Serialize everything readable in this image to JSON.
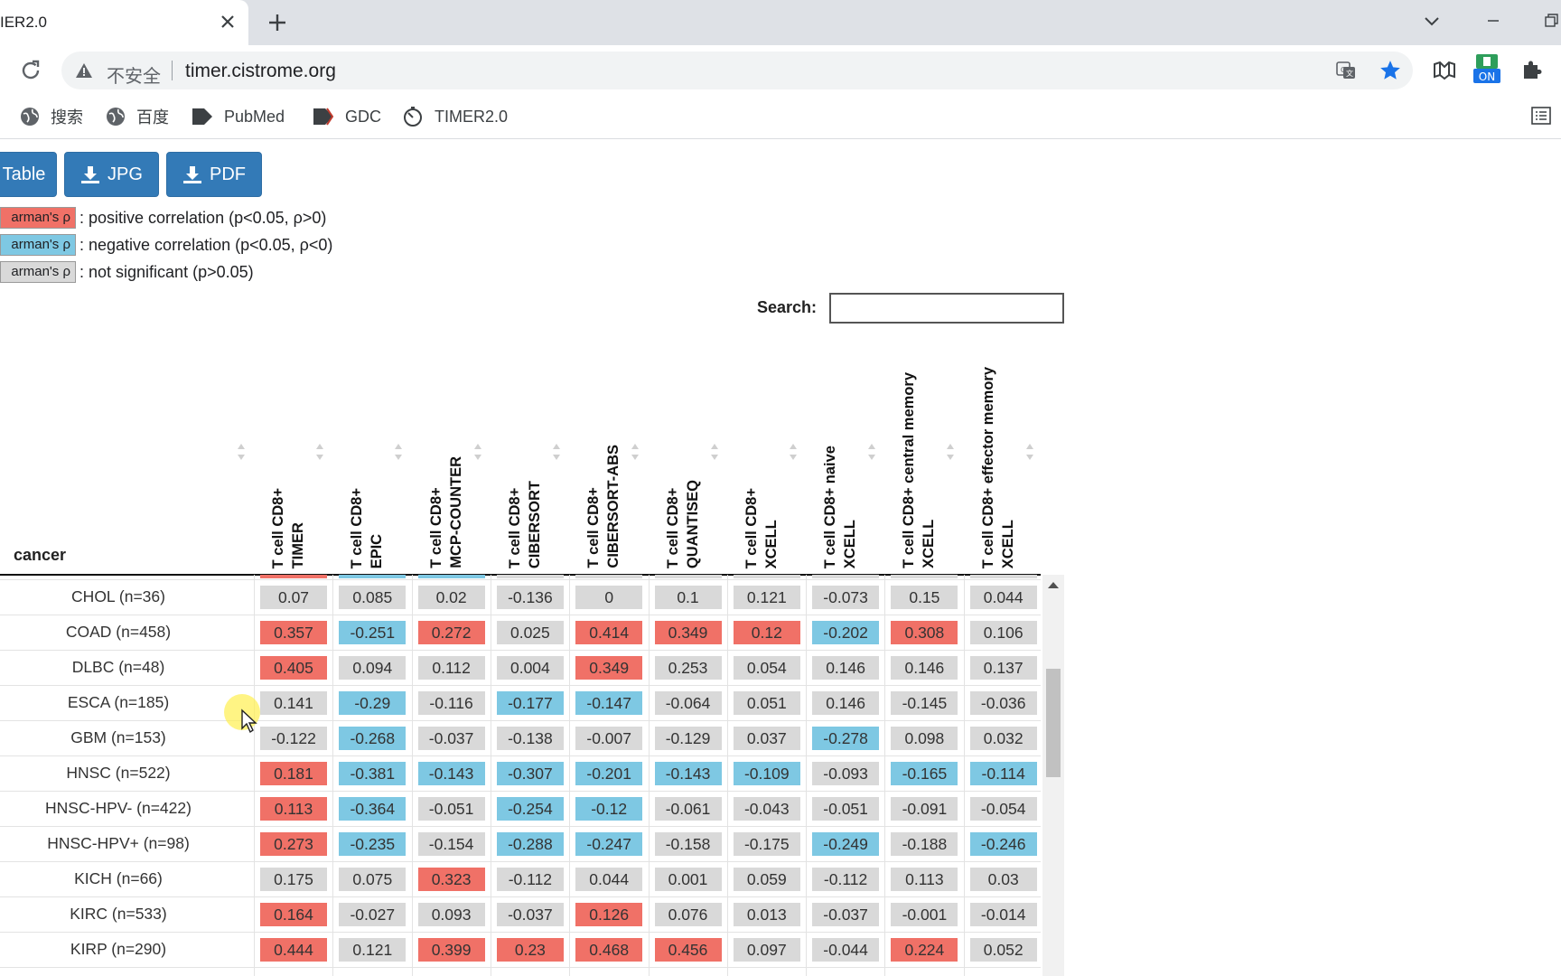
{
  "browser": {
    "tab_title": "IER2.0",
    "insecure_label": "不安全",
    "url": "timer.cistrome.org",
    "ext_on_label": "ON",
    "bookmarks": [
      {
        "label": "搜索",
        "icon": "globe-icon"
      },
      {
        "label": "百度",
        "icon": "globe-icon"
      },
      {
        "label": "PubMed",
        "icon": "bookmark-tag-icon"
      },
      {
        "label": "GDC",
        "icon": "bookmark-tag-icon"
      },
      {
        "label": "TIMER2.0",
        "icon": "timer-icon"
      }
    ]
  },
  "buttons": {
    "table": "Table",
    "jpg": "JPG",
    "pdf": "PDF"
  },
  "legend": [
    {
      "swatch": "arman's ρ",
      "text": ": positive correlation (p<0.05, ρ>0)",
      "color": "#f07167"
    },
    {
      "swatch": "arman's ρ",
      "text": ": negative correlation (p<0.05, ρ<0)",
      "color": "#7ec8e3"
    },
    {
      "swatch": "arman's ρ",
      "text": ": not significant (p>0.05)",
      "color": "#d9d9d9"
    }
  ],
  "search": {
    "label": "Search:",
    "value": ""
  },
  "colors": {
    "pos": "#f07167",
    "neg": "#7ec8e3",
    "ns": "#d9d9d9",
    "accent": "#337ab7"
  },
  "table": {
    "first_column": "cancer",
    "columns": [
      {
        "line1": "T cell CD8+",
        "line2": "TIMER"
      },
      {
        "line1": "T cell CD8+",
        "line2": "EPIC"
      },
      {
        "line1": "T cell CD8+",
        "line2": "MCP-COUNTER"
      },
      {
        "line1": "T cell CD8+",
        "line2": "CIBERSORT"
      },
      {
        "line1": "T cell CD8+",
        "line2": "CIBERSORT-ABS"
      },
      {
        "line1": "T cell CD8+",
        "line2": "QUANTISEQ"
      },
      {
        "line1": "T cell CD8+",
        "line2": "XCELL"
      },
      {
        "line1": "T cell CD8+ naive",
        "line2": "XCELL"
      },
      {
        "line1": "T cell CD8+ central memory",
        "line2": "XCELL"
      },
      {
        "line1": "T cell CD8+ effector memory",
        "line2": "XCELL"
      }
    ],
    "rows": [
      {
        "cancer": "CHOL (n=36)",
        "values": [
          "0.07",
          "0.085",
          "0.02",
          "-0.136",
          "0",
          "0.1",
          "0.121",
          "-0.073",
          "0.15",
          "0.044"
        ],
        "sig": [
          "n",
          "n",
          "n",
          "n",
          "n",
          "n",
          "n",
          "n",
          "n",
          "n"
        ]
      },
      {
        "cancer": "COAD (n=458)",
        "values": [
          "0.357",
          "-0.251",
          "0.272",
          "0.025",
          "0.414",
          "0.349",
          "0.12",
          "-0.202",
          "0.308",
          "0.106"
        ],
        "sig": [
          "p",
          "m",
          "p",
          "n",
          "p",
          "p",
          "p",
          "m",
          "p",
          "n"
        ]
      },
      {
        "cancer": "DLBC (n=48)",
        "values": [
          "0.405",
          "0.094",
          "0.112",
          "0.004",
          "0.349",
          "0.253",
          "0.054",
          "0.146",
          "0.146",
          "0.137"
        ],
        "sig": [
          "p",
          "n",
          "n",
          "n",
          "p",
          "n",
          "n",
          "n",
          "n",
          "n"
        ]
      },
      {
        "cancer": "ESCA (n=185)",
        "values": [
          "0.141",
          "-0.29",
          "-0.116",
          "-0.177",
          "-0.147",
          "-0.064",
          "0.051",
          "0.146",
          "-0.145",
          "-0.036"
        ],
        "sig": [
          "n",
          "m",
          "n",
          "m",
          "m",
          "n",
          "n",
          "n",
          "n",
          "n"
        ]
      },
      {
        "cancer": "GBM (n=153)",
        "values": [
          "-0.122",
          "-0.268",
          "-0.037",
          "-0.138",
          "-0.007",
          "-0.129",
          "0.037",
          "-0.278",
          "0.098",
          "0.032"
        ],
        "sig": [
          "n",
          "m",
          "n",
          "n",
          "n",
          "n",
          "n",
          "m",
          "n",
          "n"
        ]
      },
      {
        "cancer": "HNSC (n=522)",
        "values": [
          "0.181",
          "-0.381",
          "-0.143",
          "-0.307",
          "-0.201",
          "-0.143",
          "-0.109",
          "-0.093",
          "-0.165",
          "-0.114"
        ],
        "sig": [
          "p",
          "m",
          "m",
          "m",
          "m",
          "m",
          "m",
          "n",
          "m",
          "m"
        ]
      },
      {
        "cancer": "HNSC-HPV- (n=422)",
        "values": [
          "0.113",
          "-0.364",
          "-0.051",
          "-0.254",
          "-0.12",
          "-0.061",
          "-0.043",
          "-0.051",
          "-0.091",
          "-0.054"
        ],
        "sig": [
          "p",
          "m",
          "n",
          "m",
          "m",
          "n",
          "n",
          "n",
          "n",
          "n"
        ]
      },
      {
        "cancer": "HNSC-HPV+ (n=98)",
        "values": [
          "0.273",
          "-0.235",
          "-0.154",
          "-0.288",
          "-0.247",
          "-0.158",
          "-0.175",
          "-0.249",
          "-0.188",
          "-0.246"
        ],
        "sig": [
          "p",
          "m",
          "n",
          "m",
          "m",
          "n",
          "n",
          "m",
          "n",
          "m"
        ]
      },
      {
        "cancer": "KICH (n=66)",
        "values": [
          "0.175",
          "0.075",
          "0.323",
          "-0.112",
          "0.044",
          "0.001",
          "0.059",
          "-0.112",
          "0.113",
          "0.03"
        ],
        "sig": [
          "n",
          "n",
          "p",
          "n",
          "n",
          "n",
          "n",
          "n",
          "n",
          "n"
        ]
      },
      {
        "cancer": "KIRC (n=533)",
        "values": [
          "0.164",
          "-0.027",
          "0.093",
          "-0.037",
          "0.126",
          "0.076",
          "0.013",
          "-0.037",
          "-0.001",
          "-0.014"
        ],
        "sig": [
          "p",
          "n",
          "n",
          "n",
          "p",
          "n",
          "n",
          "n",
          "n",
          "n"
        ]
      },
      {
        "cancer": "KIRP (n=290)",
        "values": [
          "0.444",
          "0.121",
          "0.399",
          "0.23",
          "0.468",
          "0.456",
          "0.097",
          "-0.044",
          "0.224",
          "0.052"
        ],
        "sig": [
          "p",
          "n",
          "p",
          "p",
          "p",
          "p",
          "n",
          "n",
          "p",
          "n"
        ]
      }
    ]
  }
}
